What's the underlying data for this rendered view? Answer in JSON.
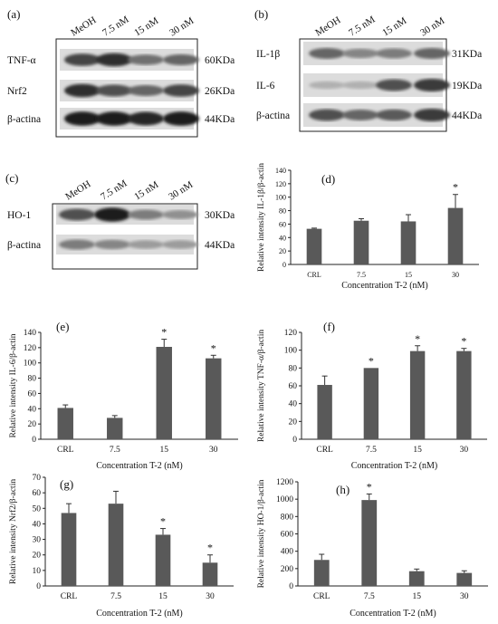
{
  "blots": [
    {
      "panel_letter": "(a)",
      "lanes": [
        "MeOH",
        "7.5 nM",
        "15 nM",
        "30 nM"
      ],
      "rows": [
        {
          "label": "TNF-α",
          "mw": "60KDa",
          "intensity": [
            0.75,
            0.85,
            0.55,
            0.6
          ]
        },
        {
          "label": "Nrf2",
          "mw": "26KDa",
          "intensity": [
            0.85,
            0.7,
            0.6,
            0.75
          ]
        },
        {
          "label": "β-actina",
          "mw": "44KDa",
          "intensity": [
            0.95,
            0.95,
            0.9,
            0.95
          ]
        }
      ]
    },
    {
      "panel_letter": "(b)",
      "lanes": [
        "MeOH",
        "7.5 nM",
        "15 nM",
        "30 nM"
      ],
      "rows": [
        {
          "label": "IL-1β",
          "mw": "31KDa",
          "intensity": [
            0.6,
            0.45,
            0.5,
            0.6
          ]
        },
        {
          "label": "IL-6",
          "mw": "19KDa",
          "intensity": [
            0.25,
            0.25,
            0.7,
            0.8
          ]
        },
        {
          "label": "β-actina",
          "mw": "44KDa",
          "intensity": [
            0.7,
            0.6,
            0.65,
            0.8
          ]
        }
      ]
    },
    {
      "panel_letter": "(c)",
      "lanes": [
        "MeOH",
        "7.5 nM",
        "15 nM",
        "30 nM"
      ],
      "rows": [
        {
          "label": "HO-1",
          "mw": "30KDa",
          "intensity": [
            0.7,
            0.95,
            0.5,
            0.4
          ]
        },
        {
          "label": "β-actina",
          "mw": "44KDa",
          "intensity": [
            0.5,
            0.45,
            0.35,
            0.35
          ]
        }
      ]
    }
  ],
  "chart_data": [
    {
      "panel_letter": "(d)",
      "type": "bar",
      "categories": [
        "CRL",
        "7.5",
        "15",
        "30"
      ],
      "values": [
        53,
        65,
        64,
        84
      ],
      "errors": [
        1,
        3,
        10,
        20
      ],
      "significant": [
        "",
        "",
        "",
        "*"
      ],
      "ylim": [
        0,
        140
      ],
      "yticks": [
        0,
        20,
        40,
        60,
        80,
        100,
        120,
        140
      ],
      "ylabel": "Relative intensity IL-1β/β-actin",
      "xlabel": "Concentration T-2 (nM)"
    },
    {
      "panel_letter": "(e)",
      "type": "bar",
      "categories": [
        "CRL",
        "7.5",
        "15",
        "30"
      ],
      "values": [
        41,
        28,
        121,
        106
      ],
      "errors": [
        4,
        3,
        10,
        4
      ],
      "significant": [
        "",
        "",
        "*",
        "*"
      ],
      "ylim": [
        0,
        140
      ],
      "yticks": [
        0,
        20,
        40,
        60,
        80,
        100,
        120,
        140
      ],
      "ylabel": "Relative intensity IL-6/β-actin",
      "xlabel": "Concentration T-2 (nM)"
    },
    {
      "panel_letter": "(f)",
      "type": "bar",
      "categories": [
        "CRL",
        "7.5",
        "15",
        "30"
      ],
      "values": [
        61,
        80,
        99,
        99
      ],
      "errors": [
        10,
        0,
        6,
        3
      ],
      "significant": [
        "",
        "*",
        "*",
        "*"
      ],
      "ylim": [
        0,
        120
      ],
      "yticks": [
        0,
        20,
        40,
        60,
        80,
        100,
        120
      ],
      "ylabel": "Relative intensity TNF-α/β-actin",
      "xlabel": "Concentration T-2 (nM)"
    },
    {
      "panel_letter": "(g)",
      "type": "bar",
      "categories": [
        "CRL",
        "7.5",
        "15",
        "30"
      ],
      "values": [
        47,
        53,
        33,
        15
      ],
      "errors": [
        6,
        8,
        4,
        5
      ],
      "significant": [
        "",
        "",
        "*",
        "*"
      ],
      "ylim": [
        0,
        70
      ],
      "yticks": [
        0,
        10,
        20,
        30,
        40,
        50,
        60,
        70
      ],
      "ylabel": "Relative intensity Nrf2/β-actin",
      "xlabel": "Concentration T-2 (nM)"
    },
    {
      "panel_letter": "(h)",
      "type": "bar",
      "categories": [
        "CRL",
        "7.5",
        "15",
        "30"
      ],
      "values": [
        300,
        990,
        170,
        150
      ],
      "errors": [
        65,
        70,
        25,
        25
      ],
      "significant": [
        "",
        "*",
        "",
        ""
      ],
      "ylim": [
        0,
        1200
      ],
      "yticks": [
        0,
        200,
        400,
        600,
        800,
        1000,
        1200
      ],
      "ylabel": "Relative intensity HO-1/β-actin",
      "xlabel": "Concentration T-2 (nM)"
    }
  ],
  "colors": {
    "bar": "#595959",
    "axis": "#222222",
    "error": "#333333",
    "blot_bg": "#dcdcdc",
    "band": "#141414"
  }
}
